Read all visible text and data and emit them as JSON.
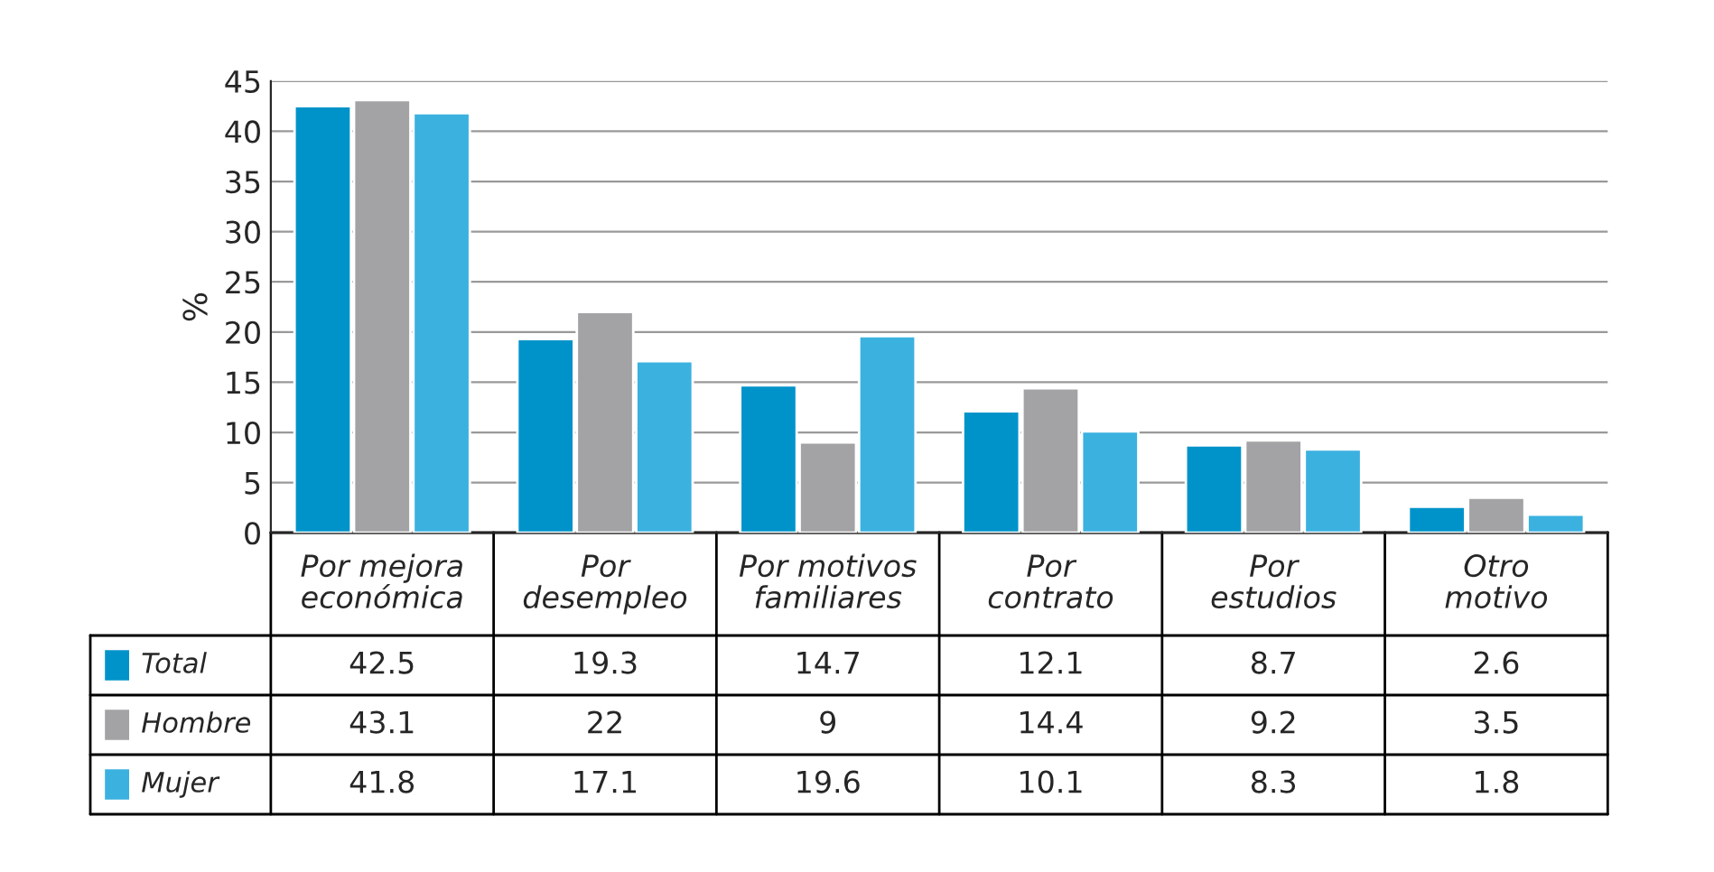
{
  "chart_data": {
    "type": "bar",
    "ylabel": "%",
    "categories": [
      "Por mejora\neconómica",
      "Por\ndesempleo",
      "Por motivos\nfamiliares",
      "Por\ncontrato",
      "Por\nestudios",
      "Otro\nmotivo"
    ],
    "series": [
      {
        "name": "Total",
        "color": "#0093c9",
        "values": [
          42.5,
          19.3,
          14.7,
          12.1,
          8.7,
          2.6
        ]
      },
      {
        "name": "Hombre",
        "color": "#a3a3a6",
        "values": [
          43.1,
          22,
          9,
          14.4,
          9.2,
          3.5
        ]
      },
      {
        "name": "Mujer",
        "color": "#3bb1e0",
        "values": [
          41.8,
          17.1,
          19.6,
          10.1,
          8.3,
          1.8
        ]
      }
    ],
    "ylim": [
      0,
      45
    ],
    "yticks": [
      0,
      5,
      10,
      15,
      20,
      25,
      30,
      35,
      40,
      45
    ],
    "grid": "y",
    "data_labels": true,
    "legend": "bottom left"
  }
}
